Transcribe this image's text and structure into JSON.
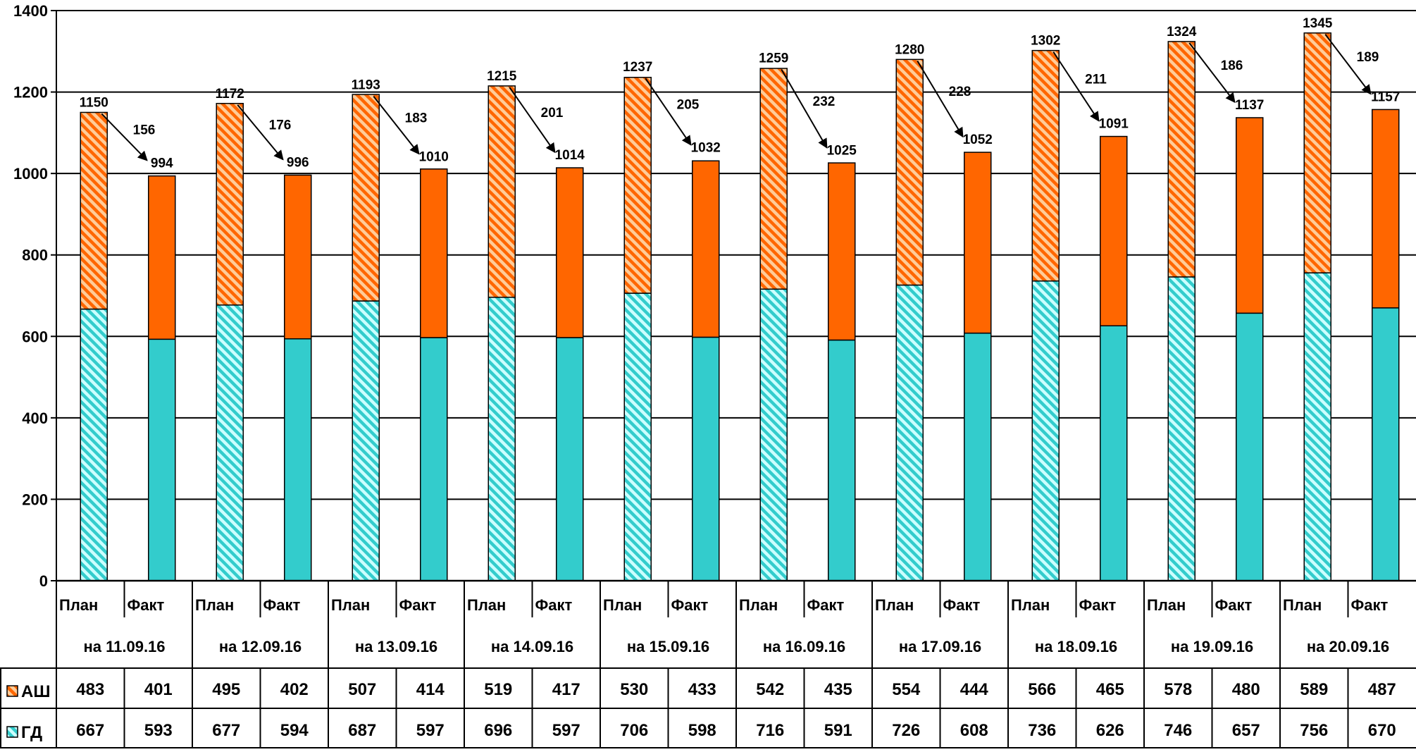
{
  "colors": {
    "gd": "#33cccc",
    "ash": "#ff6600",
    "gd_hatch_light": "#ccffff",
    "ash_hatch_light": "#ffcc99",
    "grid": "#000000"
  },
  "chart_data": {
    "type": "bar",
    "stacked": true,
    "ylim": [
      0,
      1400
    ],
    "yticks": [
      0,
      200,
      400,
      600,
      800,
      1000,
      1200,
      1400
    ],
    "grid": true,
    "legend": "left-of-data-table",
    "categories": [
      "на 11.09.16",
      "на 12.09.16",
      "на 13.09.16",
      "на 14.09.16",
      "на 15.09.16",
      "на 16.09.16",
      "на 17.09.16",
      "на 18.09.16",
      "на 19.09.16",
      "на 20.09.16"
    ],
    "sub_labels": [
      "План",
      "Факт"
    ],
    "series": [
      {
        "name": "ГД",
        "icon": "gd-legend-swatch",
        "plan": [
          667,
          677,
          687,
          696,
          706,
          716,
          726,
          736,
          746,
          756
        ],
        "fact": [
          593,
          594,
          597,
          597,
          598,
          591,
          608,
          626,
          657,
          670
        ]
      },
      {
        "name": "АШ",
        "icon": "ash-legend-swatch",
        "plan": [
          483,
          495,
          507,
          519,
          530,
          542,
          554,
          566,
          578,
          589
        ],
        "fact": [
          401,
          402,
          414,
          417,
          433,
          435,
          444,
          465,
          480,
          487
        ]
      }
    ],
    "plan_totals": [
      1150,
      1172,
      1193,
      1215,
      1237,
      1259,
      1280,
      1302,
      1324,
      1345
    ],
    "fact_totals": [
      994,
      996,
      1010,
      1014,
      1032,
      1025,
      1052,
      1091,
      1137,
      1157
    ],
    "gap_labels": [
      156,
      176,
      183,
      201,
      205,
      232,
      228,
      211,
      186,
      189
    ]
  }
}
